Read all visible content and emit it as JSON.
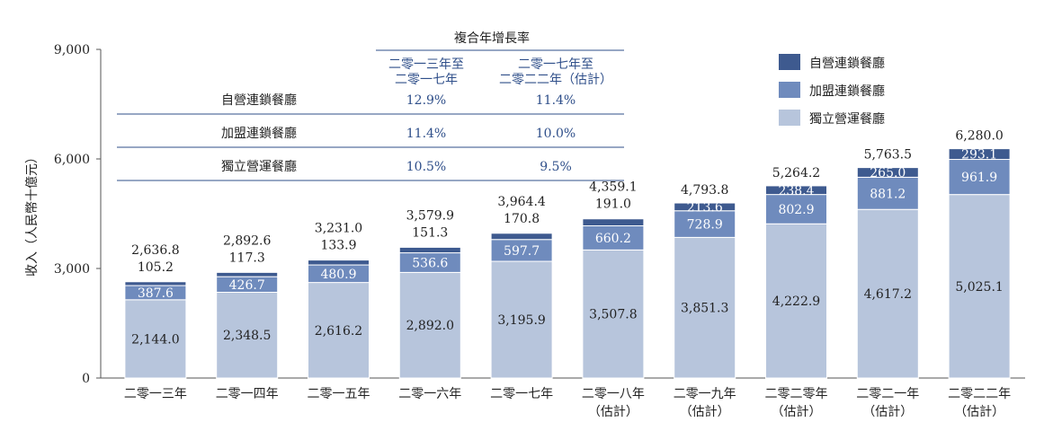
{
  "chart_data": {
    "type": "bar",
    "stacked": true,
    "ylabel": "收入（人民幣十億元）",
    "ylim": [
      0,
      9000
    ],
    "yticks": [
      "0",
      "3,000",
      "6,000",
      "9,000"
    ],
    "yticks_values": [
      0,
      3000,
      6000,
      9000
    ],
    "categories": [
      [
        "二零一三年"
      ],
      [
        "二零一四年"
      ],
      [
        "二零一五年"
      ],
      [
        "二零一六年"
      ],
      [
        "二零一七年"
      ],
      [
        "二零一八年",
        "（估計）"
      ],
      [
        "二零一九年",
        "（估計）"
      ],
      [
        "二零二零年",
        "（估計）"
      ],
      [
        "二零二一年",
        "（估計）"
      ],
      [
        "二零二二年",
        "（估計）"
      ]
    ],
    "series": [
      {
        "name": "獨立營運餐廳",
        "color": "#b7c5dc",
        "values": [
          2144.0,
          2348.5,
          2616.2,
          2892.0,
          3195.9,
          3507.8,
          3851.3,
          4222.9,
          4617.2,
          5025.1
        ],
        "labels": [
          "2,144.0",
          "2,348.5",
          "2,616.2",
          "2,892.0",
          "3,195.9",
          "3,507.8",
          "3,851.3",
          "4,222.9",
          "4,617.2",
          "5,025.1"
        ]
      },
      {
        "name": "加盟連鎖餐廳",
        "color": "#6f8bbd",
        "values": [
          387.6,
          426.7,
          480.9,
          536.6,
          597.7,
          660.2,
          728.9,
          802.9,
          881.2,
          961.9
        ],
        "labels": [
          "387.6",
          "426.7",
          "480.9",
          "536.6",
          "597.7",
          "660.2",
          "728.9",
          "802.9",
          "881.2",
          "961.9"
        ]
      },
      {
        "name": "自營連鎖餐廳",
        "color": "#3e5a8f",
        "values": [
          105.2,
          117.3,
          133.9,
          151.3,
          170.8,
          191.0,
          213.6,
          238.4,
          265.0,
          293.1
        ],
        "labels": [
          "105.2",
          "117.3",
          "133.9",
          "151.3",
          "170.8",
          "191.0",
          "213.6",
          "238.4",
          "265.0",
          "293.1"
        ],
        "label_inside": [
          false,
          false,
          false,
          false,
          false,
          false,
          true,
          true,
          true,
          true
        ]
      }
    ],
    "totals": [
      "2,636.8",
      "2,892.6",
      "3,231.0",
      "3,579.9",
      "3,964.4",
      "4,359.1",
      "4,793.8",
      "5,264.2",
      "5,763.5",
      "6,280.0"
    ],
    "totals_values": [
      2636.8,
      2892.6,
      3231.0,
      3579.9,
      3964.4,
      4359.1,
      4793.8,
      5264.2,
      5763.5,
      6280.0
    ],
    "legend": {
      "position": "top-right",
      "items": [
        "自營連鎖餐廳",
        "加盟連鎖餐廳",
        "獨立營運餐廳"
      ]
    },
    "cagr_table": {
      "title": "複合年增長率",
      "col1": [
        "二零一三年至",
        "二零一七年"
      ],
      "col2": [
        "二零一七年至",
        "二零二二年（估計）"
      ],
      "rows": [
        {
          "label": "自營連鎖餐廳",
          "v1": "12.9%",
          "v2": "11.4%"
        },
        {
          "label": "加盟連鎖餐廳",
          "v1": "11.4%",
          "v2": "10.0%"
        },
        {
          "label": "獨立營運餐廳",
          "v1": "10.5%",
          "v2": "9.5%"
        }
      ]
    }
  }
}
